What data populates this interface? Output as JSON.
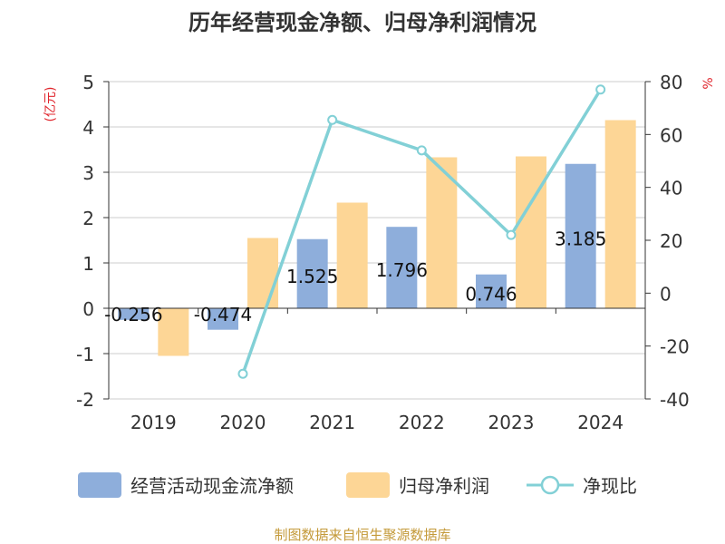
{
  "title": "历年经营现金净额、归母净利润情况",
  "y_left_unit": "(亿元)",
  "y_right_unit": "%",
  "source": "制图数据来自恒生聚源数据库",
  "colors": {
    "cash_flow": "#8eaedb",
    "net_profit": "#fdd696",
    "ratio": "#82d0d6",
    "red_unit": "#e0262d",
    "source": "#c49a3a",
    "axis": "#333333",
    "grid": "#cccccc"
  },
  "chart_data": {
    "type": "bar",
    "categories": [
      "2019",
      "2020",
      "2021",
      "2022",
      "2023",
      "2024"
    ],
    "y_left": {
      "ylim": [
        -2,
        5
      ],
      "ticks": [
        "-2",
        "-1",
        "0",
        "1",
        "2",
        "3",
        "4",
        "5"
      ]
    },
    "y_right": {
      "ylim": [
        -40,
        80
      ],
      "ticks": [
        "-40",
        "-20",
        "0",
        "20",
        "40",
        "60",
        "80"
      ]
    },
    "series": [
      {
        "name": "经营活动现金流净额",
        "kind": "bar",
        "axis": "left",
        "values": [
          -0.256,
          -0.474,
          1.525,
          1.796,
          0.746,
          3.185
        ],
        "labels": [
          "-0.256",
          "-0.474",
          "1.525",
          "1.796",
          "0.746",
          "3.185"
        ]
      },
      {
        "name": "归母净利润",
        "kind": "bar",
        "axis": "left",
        "values": [
          -1.05,
          1.55,
          2.33,
          3.33,
          3.35,
          4.15
        ]
      },
      {
        "name": "净现比",
        "kind": "line",
        "axis": "right",
        "values": [
          null,
          -30.5,
          65.5,
          54,
          22,
          77
        ]
      }
    ],
    "legend": {
      "position": "bottom"
    },
    "grid": true
  }
}
